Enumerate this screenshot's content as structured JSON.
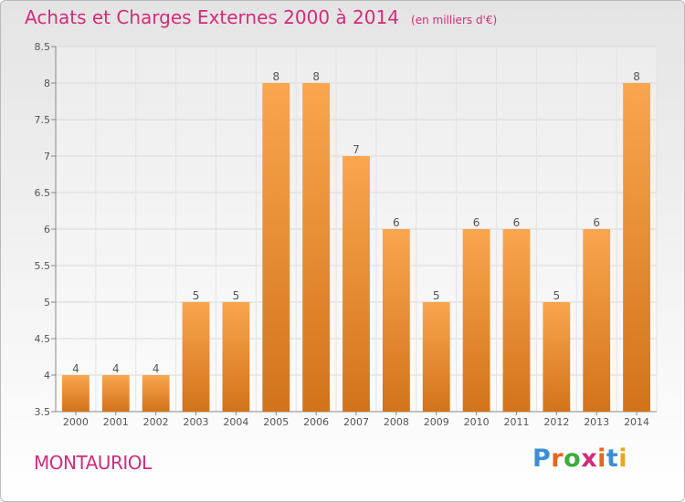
{
  "header": {
    "title": "Achats et Charges Externes 2000 à 2014",
    "subtitle": "(en milliers d'€)"
  },
  "footer": {
    "commune": "MONTAURIOL",
    "brand": "Proxiti"
  },
  "colors": {
    "title": "#d42c78",
    "bar_top": "#f9a64f",
    "bar_bottom": "#d2731a",
    "brand": [
      "#3b8ed6",
      "#e5671c",
      "#3fab3c",
      "#d4297a",
      "#e5671c",
      "#3b8ed6",
      "#e5a81c"
    ]
  },
  "chart_data": {
    "type": "bar",
    "title": "Achats et Charges Externes 2000 à 2014",
    "subtitle": "(en milliers d'€)",
    "categories": [
      "2000",
      "2001",
      "2002",
      "2003",
      "2004",
      "2005",
      "2006",
      "2007",
      "2008",
      "2009",
      "2010",
      "2011",
      "2012",
      "2013",
      "2014"
    ],
    "values": [
      4,
      4,
      4,
      5,
      5,
      8,
      8,
      7,
      6,
      5,
      6,
      6,
      5,
      6,
      8
    ],
    "ylim": [
      3.5,
      8.5
    ],
    "yticks": [
      3.5,
      4,
      4.5,
      5,
      5.5,
      6,
      6.5,
      7,
      7.5,
      8,
      8.5
    ],
    "grid": true,
    "xlabel": "",
    "ylabel": ""
  }
}
